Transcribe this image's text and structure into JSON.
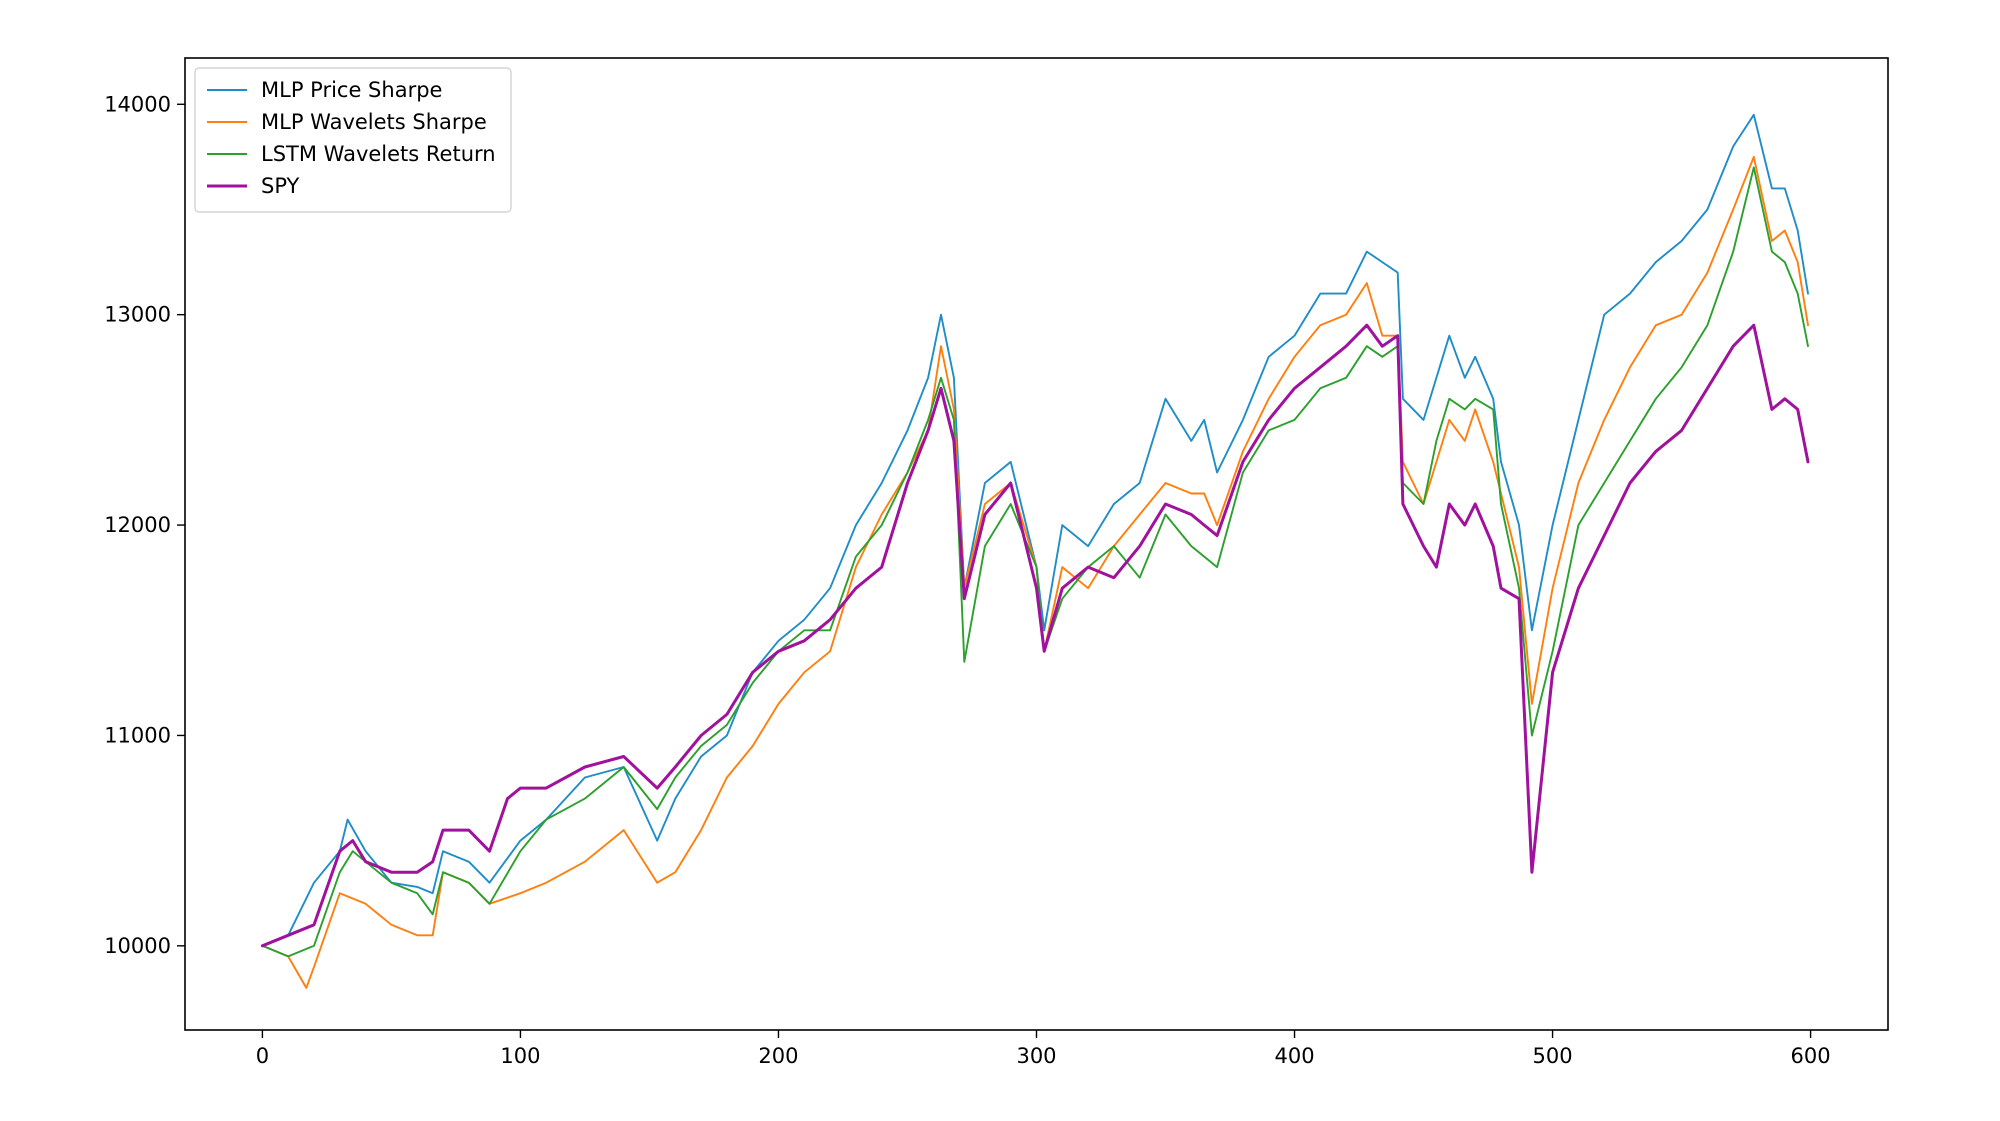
{
  "chart_data": {
    "type": "line",
    "title": "",
    "xlabel": "",
    "ylabel": "",
    "xlim": [
      -30,
      630
    ],
    "ylim": [
      9600,
      14220
    ],
    "x_ticks": [
      0,
      100,
      200,
      300,
      400,
      500,
      600
    ],
    "y_ticks": [
      10000,
      11000,
      12000,
      13000,
      14000
    ],
    "x_tick_labels": [
      "0",
      "100",
      "200",
      "300",
      "400",
      "500",
      "600"
    ],
    "y_tick_labels": [
      "10000",
      "11000",
      "12000",
      "13000",
      "14000"
    ],
    "grid": false,
    "legend_position": "top-left",
    "series": [
      {
        "name": "MLP Price Sharpe",
        "color": "#1f8dc8",
        "x": [
          0,
          10,
          20,
          30,
          33,
          40,
          50,
          60,
          66,
          70,
          80,
          88,
          100,
          110,
          125,
          140,
          153,
          160,
          170,
          180,
          190,
          200,
          210,
          220,
          230,
          240,
          250,
          258,
          263,
          268,
          272,
          280,
          290,
          300,
          303,
          310,
          320,
          330,
          340,
          350,
          360,
          365,
          370,
          380,
          390,
          400,
          410,
          420,
          428,
          434,
          440,
          442,
          450,
          455,
          460,
          466,
          470,
          477,
          480,
          487,
          492,
          500,
          510,
          520,
          530,
          540,
          550,
          560,
          570,
          578,
          585,
          590,
          595,
          599
        ],
        "y": [
          10000,
          10050,
          10300,
          10450,
          10600,
          10450,
          10300,
          10280,
          10250,
          10450,
          10400,
          10300,
          10500,
          10600,
          10800,
          10850,
          10500,
          10700,
          10900,
          11000,
          11300,
          11450,
          11550,
          11700,
          12000,
          12200,
          12450,
          12700,
          13000,
          12700,
          11700,
          12200,
          12300,
          11800,
          11500,
          12000,
          11900,
          12100,
          12200,
          12600,
          12400,
          12500,
          12250,
          12500,
          12800,
          12900,
          13100,
          13100,
          13300,
          13250,
          13200,
          12600,
          12500,
          12700,
          12900,
          12700,
          12800,
          12600,
          12300,
          12000,
          11500,
          12000,
          12500,
          13000,
          13100,
          13250,
          13350,
          13500,
          13800,
          13950,
          13600,
          13600,
          13400,
          13100
        ]
      },
      {
        "name": "MLP Wavelets Sharpe",
        "color": "#ff7f0e",
        "x": [
          0,
          10,
          17,
          20,
          30,
          40,
          50,
          60,
          66,
          70,
          80,
          88,
          100,
          110,
          125,
          140,
          153,
          160,
          170,
          180,
          190,
          200,
          210,
          220,
          230,
          240,
          250,
          258,
          263,
          268,
          272,
          280,
          290,
          300,
          303,
          310,
          320,
          330,
          340,
          350,
          360,
          365,
          370,
          380,
          390,
          400,
          410,
          420,
          428,
          434,
          440,
          442,
          450,
          455,
          460,
          466,
          470,
          477,
          480,
          487,
          492,
          500,
          510,
          520,
          530,
          540,
          550,
          560,
          570,
          578,
          585,
          590,
          595,
          599
        ],
        "y": [
          10000,
          9950,
          9800,
          9900,
          10250,
          10200,
          10100,
          10050,
          10050,
          10350,
          10300,
          10200,
          10250,
          10300,
          10400,
          10550,
          10300,
          10350,
          10550,
          10800,
          10950,
          11150,
          11300,
          11400,
          11800,
          12050,
          12250,
          12450,
          12850,
          12550,
          11700,
          12100,
          12200,
          11800,
          11400,
          11800,
          11700,
          11900,
          12050,
          12200,
          12150,
          12150,
          12000,
          12350,
          12600,
          12800,
          12950,
          13000,
          13150,
          12900,
          12900,
          12300,
          12100,
          12300,
          12500,
          12400,
          12550,
          12300,
          12150,
          11800,
          11150,
          11700,
          12200,
          12500,
          12750,
          12950,
          13000,
          13200,
          13500,
          13750,
          13350,
          13400,
          13250,
          12950
        ]
      },
      {
        "name": "LSTM Wavelets Return",
        "color": "#2ca02c",
        "x": [
          0,
          10,
          20,
          30,
          35,
          40,
          50,
          60,
          66,
          70,
          80,
          88,
          100,
          110,
          125,
          140,
          153,
          160,
          170,
          180,
          190,
          200,
          210,
          220,
          230,
          240,
          250,
          258,
          263,
          268,
          272,
          280,
          290,
          300,
          303,
          310,
          320,
          330,
          340,
          350,
          360,
          365,
          370,
          380,
          390,
          400,
          410,
          420,
          428,
          434,
          440,
          442,
          450,
          455,
          460,
          466,
          470,
          477,
          480,
          487,
          492,
          500,
          510,
          520,
          530,
          540,
          550,
          560,
          570,
          578,
          585,
          590,
          595,
          599
        ],
        "y": [
          10000,
          9950,
          10000,
          10350,
          10450,
          10400,
          10300,
          10250,
          10150,
          10350,
          10300,
          10200,
          10450,
          10600,
          10700,
          10850,
          10650,
          10800,
          10950,
          11050,
          11250,
          11400,
          11500,
          11500,
          11850,
          12000,
          12250,
          12500,
          12700,
          12500,
          11350,
          11900,
          12100,
          11800,
          11400,
          11650,
          11800,
          11900,
          11750,
          12050,
          11900,
          11850,
          11800,
          12250,
          12450,
          12500,
          12650,
          12700,
          12850,
          12800,
          12850,
          12200,
          12100,
          12400,
          12600,
          12550,
          12600,
          12550,
          12100,
          11700,
          11000,
          11400,
          12000,
          12200,
          12400,
          12600,
          12750,
          12950,
          13300,
          13700,
          13300,
          13250,
          13100,
          12850
        ]
      },
      {
        "name": "SPY",
        "color": "#a0119d",
        "x": [
          0,
          10,
          20,
          30,
          35,
          40,
          50,
          60,
          66,
          70,
          80,
          88,
          95,
          100,
          110,
          125,
          140,
          153,
          160,
          170,
          180,
          190,
          200,
          210,
          220,
          230,
          240,
          250,
          258,
          263,
          268,
          272,
          280,
          290,
          300,
          303,
          310,
          320,
          330,
          340,
          350,
          360,
          365,
          370,
          380,
          390,
          400,
          410,
          420,
          428,
          434,
          440,
          442,
          450,
          455,
          460,
          466,
          470,
          477,
          480,
          487,
          492,
          500,
          510,
          520,
          530,
          540,
          550,
          560,
          570,
          578,
          585,
          590,
          595,
          599
        ],
        "y": [
          10000,
          10050,
          10100,
          10450,
          10500,
          10400,
          10350,
          10350,
          10400,
          10550,
          10550,
          10450,
          10700,
          10750,
          10750,
          10850,
          10900,
          10750,
          10850,
          11000,
          11100,
          11300,
          11400,
          11450,
          11550,
          11700,
          11800,
          12200,
          12450,
          12650,
          12400,
          11650,
          12050,
          12200,
          11700,
          11400,
          11700,
          11800,
          11750,
          11900,
          12100,
          12050,
          12000,
          11950,
          12300,
          12500,
          12650,
          12750,
          12850,
          12950,
          12850,
          12900,
          12100,
          11900,
          11800,
          12100,
          12000,
          12100,
          11900,
          11700,
          11650,
          10350,
          11300,
          11700,
          11950,
          12200,
          12350,
          12450,
          12650,
          12850,
          12950,
          12550,
          12600,
          12550,
          12300
        ]
      }
    ]
  }
}
